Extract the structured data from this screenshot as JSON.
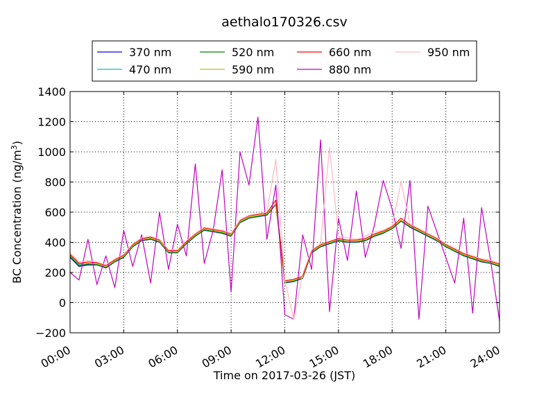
{
  "chart_data": {
    "type": "line",
    "title": "aethalo170326.csv",
    "xlabel": "Time on 2017-03-26 (JST)",
    "ylabel": "BC Concentration (ng/m³)",
    "ylabel_base": "BC Concentration (ng/m",
    "ylabel_sup": "3",
    "ylabel_tail": ")",
    "xlim": [
      0,
      24
    ],
    "ylim": [
      -200,
      1400
    ],
    "grid": true,
    "legend_position": "top",
    "x_ticks": [
      {
        "value": 0,
        "label": "00:00"
      },
      {
        "value": 3,
        "label": "03:00"
      },
      {
        "value": 6,
        "label": "06:00"
      },
      {
        "value": 9,
        "label": "09:00"
      },
      {
        "value": 12,
        "label": "12:00"
      },
      {
        "value": 15,
        "label": "15:00"
      },
      {
        "value": 18,
        "label": "18:00"
      },
      {
        "value": 21,
        "label": "21:00"
      },
      {
        "value": 24,
        "label": "24:00"
      }
    ],
    "y_ticks": [
      {
        "value": -200,
        "label": "−200"
      },
      {
        "value": 0,
        "label": "0"
      },
      {
        "value": 200,
        "label": "200"
      },
      {
        "value": 400,
        "label": "400"
      },
      {
        "value": 600,
        "label": "600"
      },
      {
        "value": 800,
        "label": "800"
      },
      {
        "value": 1000,
        "label": "1000"
      },
      {
        "value": 1200,
        "label": "1200"
      },
      {
        "value": 1400,
        "label": "1400"
      }
    ],
    "x": [
      "00:00",
      "00:30",
      "01:00",
      "01:30",
      "02:00",
      "02:30",
      "03:00",
      "03:30",
      "04:00",
      "04:30",
      "05:00",
      "05:30",
      "06:00",
      "06:30",
      "07:00",
      "07:30",
      "08:00",
      "08:30",
      "09:00",
      "09:30",
      "10:00",
      "10:30",
      "11:00",
      "11:30",
      "12:00",
      "12:30",
      "13:00",
      "13:30",
      "14:00",
      "14:30",
      "15:00",
      "15:30",
      "16:00",
      "16:30",
      "17:00",
      "17:30",
      "18:00",
      "18:30",
      "19:00",
      "19:30",
      "20:00",
      "20:30",
      "21:00",
      "21:30",
      "22:00",
      "22:30",
      "23:00",
      "23:30",
      "24:00"
    ],
    "series": [
      {
        "name": "370 nm",
        "color": "#0000ff",
        "values": [
          300,
          240,
          250,
          250,
          230,
          270,
          300,
          370,
          410,
          420,
          400,
          330,
          330,
          390,
          440,
          480,
          470,
          460,
          440,
          530,
          560,
          570,
          580,
          650,
          130,
          140,
          160,
          330,
          370,
          390,
          410,
          400,
          400,
          410,
          440,
          460,
          490,
          540,
          500,
          470,
          440,
          410,
          370,
          340,
          310,
          290,
          270,
          260,
          240
        ]
      },
      {
        "name": "470 nm",
        "color": "#00bfbf",
        "values": [
          310,
          250,
          260,
          255,
          235,
          275,
          305,
          375,
          415,
          425,
          405,
          335,
          335,
          395,
          445,
          485,
          475,
          465,
          445,
          535,
          565,
          575,
          585,
          655,
          135,
          145,
          165,
          335,
          375,
          395,
          415,
          405,
          405,
          415,
          445,
          465,
          495,
          545,
          505,
          475,
          445,
          415,
          375,
          345,
          315,
          295,
          275,
          265,
          245
        ]
      },
      {
        "name": "520 nm",
        "color": "#008000",
        "values": [
          305,
          245,
          255,
          252,
          232,
          272,
          302,
          372,
          412,
          422,
          402,
          332,
          332,
          392,
          442,
          482,
          472,
          462,
          442,
          532,
          562,
          572,
          582,
          652,
          132,
          142,
          162,
          332,
          372,
          392,
          412,
          402,
          402,
          412,
          442,
          462,
          492,
          542,
          502,
          472,
          442,
          412,
          372,
          342,
          312,
          292,
          272,
          262,
          242
        ]
      },
      {
        "name": "590 nm",
        "color": "#bfbf00",
        "values": [
          315,
          255,
          262,
          258,
          238,
          278,
          308,
          378,
          418,
          428,
          408,
          338,
          338,
          398,
          448,
          488,
          478,
          468,
          448,
          538,
          568,
          578,
          588,
          658,
          138,
          148,
          168,
          338,
          378,
          398,
          418,
          408,
          408,
          418,
          448,
          468,
          498,
          548,
          508,
          478,
          448,
          418,
          378,
          348,
          318,
          298,
          278,
          268,
          248
        ]
      },
      {
        "name": "660 nm",
        "color": "#ff0000",
        "values": [
          320,
          260,
          270,
          265,
          245,
          285,
          315,
          385,
          425,
          435,
          415,
          345,
          345,
          405,
          455,
          495,
          485,
          475,
          455,
          545,
          575,
          585,
          595,
          680,
          145,
          155,
          175,
          345,
          385,
          405,
          425,
          415,
          415,
          425,
          455,
          475,
          505,
          560,
          515,
          485,
          455,
          425,
          385,
          355,
          325,
          305,
          285,
          275,
          255
        ]
      },
      {
        "name": "880 nm",
        "color": "#bf00bf",
        "values": [
          200,
          150,
          420,
          120,
          310,
          100,
          480,
          240,
          450,
          130,
          600,
          220,
          520,
          310,
          920,
          260,
          480,
          880,
          70,
          1000,
          780,
          1230,
          420,
          780,
          -80,
          -110,
          450,
          220,
          1080,
          -60,
          560,
          280,
          740,
          300,
          510,
          810,
          620,
          360,
          810,
          -110,
          640,
          470,
          300,
          130,
          560,
          -70,
          630,
          280,
          -120
        ]
      },
      {
        "name": "950 nm",
        "color": "#ffb6c1",
        "values": [
          330,
          270,
          280,
          270,
          250,
          290,
          320,
          390,
          430,
          440,
          420,
          350,
          350,
          410,
          460,
          500,
          490,
          480,
          460,
          550,
          580,
          590,
          600,
          950,
          150,
          -110,
          190,
          350,
          390,
          1030,
          440,
          430,
          420,
          440,
          470,
          480,
          510,
          800,
          520,
          490,
          460,
          430,
          390,
          360,
          330,
          310,
          290,
          280,
          260
        ]
      }
    ]
  }
}
